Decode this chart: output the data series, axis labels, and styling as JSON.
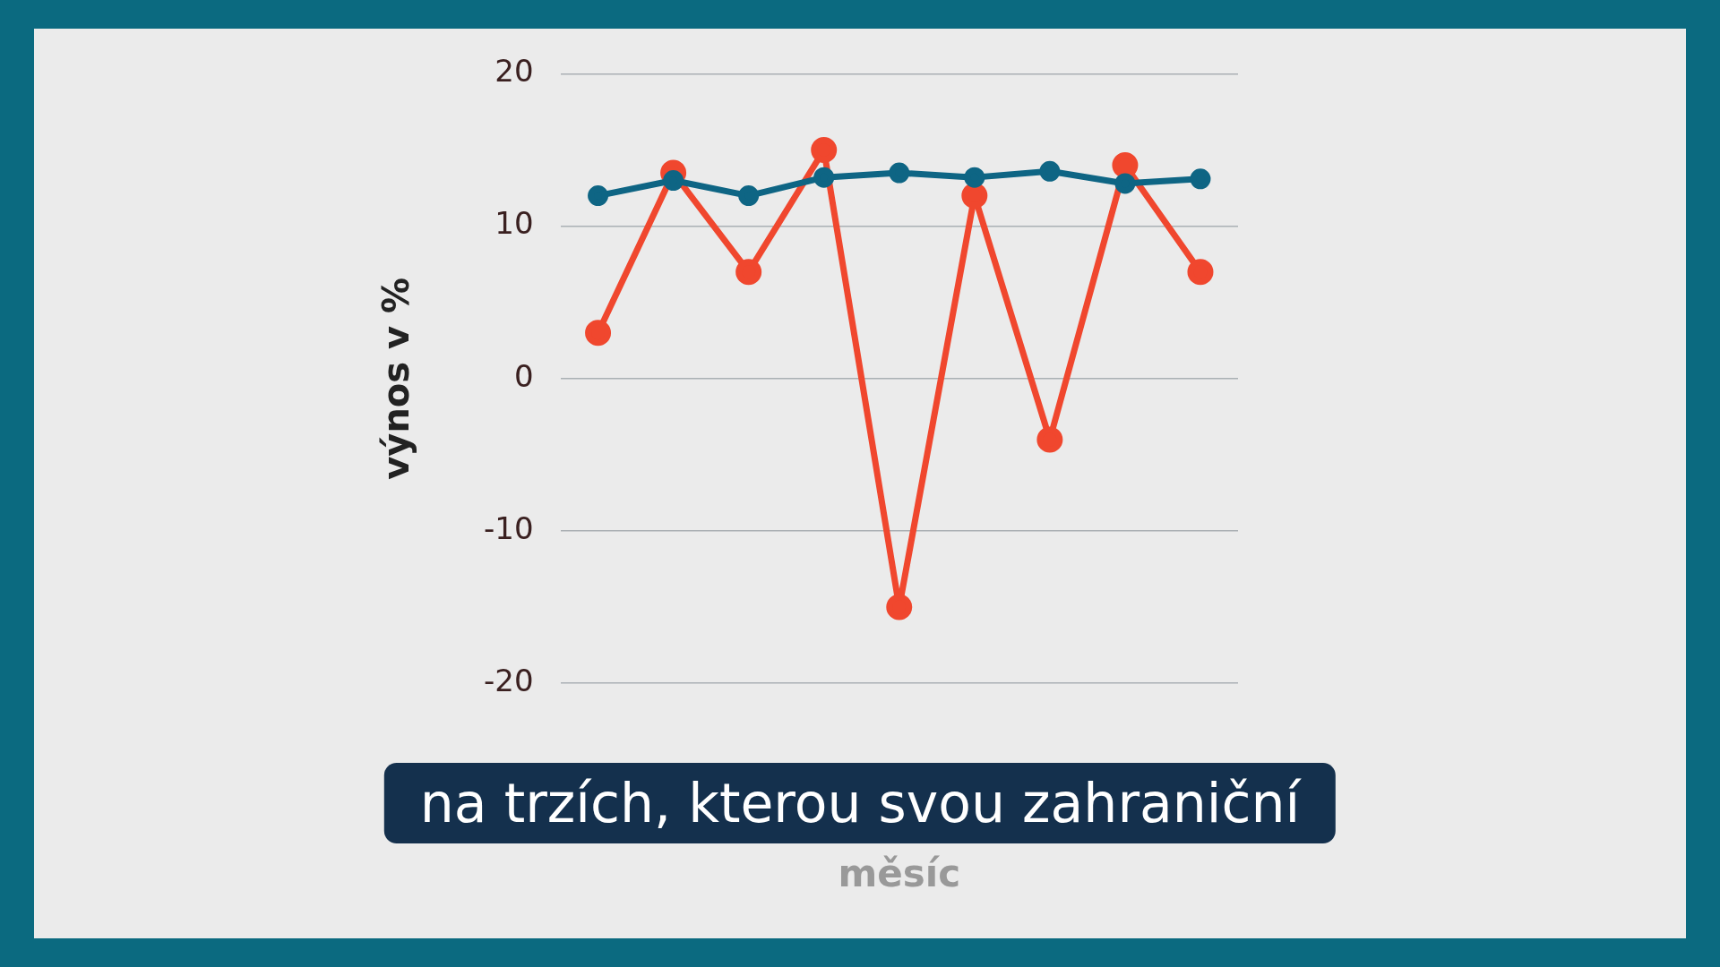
{
  "chart_data": {
    "type": "line",
    "xlabel": "měsíc",
    "ylabel": "výnos v %",
    "categories": [
      null,
      null,
      null,
      null,
      null,
      null,
      null,
      null,
      null
    ],
    "series": [
      {
        "color": "#f0472e",
        "values": [
          3,
          13.5,
          7,
          15,
          -15,
          12,
          -4,
          14,
          7
        ]
      },
      {
        "color": "#0e6584",
        "values": [
          12,
          13,
          12,
          13.2,
          13.5,
          13.2,
          13.6,
          12.8,
          13.1
        ]
      }
    ],
    "ylim": [
      -20,
      20
    ],
    "yticks": [
      -20,
      -10,
      0,
      10,
      20
    ],
    "grid": "y",
    "legend": false,
    "marker": "circle",
    "line_style": "solid",
    "annotations": [
      "na trzích, kterou svou zahraniční"
    ]
  }
}
